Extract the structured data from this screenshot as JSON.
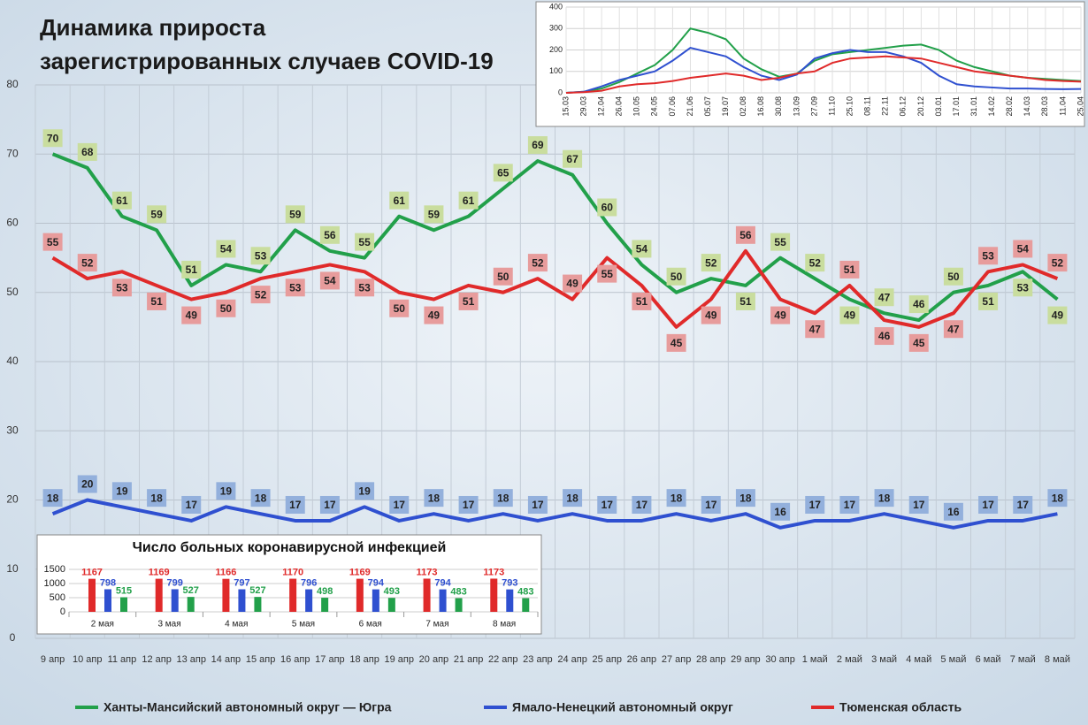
{
  "chart_data": [
    {
      "type": "line",
      "title": [
        "Динамика прироста",
        "зарегистрированных случаев COVID-19"
      ],
      "categories": [
        "9 апр",
        "10 апр",
        "11 апр",
        "12 апр",
        "13 апр",
        "14 апр",
        "15 апр",
        "16 апр",
        "17 апр",
        "18 апр",
        "19 апр",
        "20 апр",
        "21 апр",
        "22 апр",
        "23 апр",
        "24 апр",
        "25 апр",
        "26 апр",
        "27 апр",
        "28 апр",
        "29 апр",
        "30 апр",
        "1 май",
        "2 май",
        "3 май",
        "4 май",
        "5 май",
        "6 май",
        "7 май",
        "8 май"
      ],
      "series": [
        {
          "name": "Ханты-Мансийский автономный округ — Югра",
          "color": "#22a04a",
          "label_bg": "#c9dd9e",
          "values": [
            70,
            68,
            61,
            59,
            51,
            54,
            53,
            59,
            56,
            55,
            61,
            59,
            61,
            65,
            69,
            67,
            60,
            54,
            50,
            52,
            51,
            55,
            52,
            49,
            47,
            46,
            50,
            51,
            53,
            49
          ]
        },
        {
          "name": "Ямало-Ненецкий автономный округ",
          "color": "#2f50d0",
          "label_bg": "#93b0dc",
          "values": [
            18,
            20,
            19,
            18,
            17,
            19,
            18,
            17,
            17,
            19,
            17,
            18,
            17,
            18,
            17,
            18,
            17,
            17,
            18,
            17,
            18,
            16,
            17,
            17,
            18,
            17,
            16,
            17,
            17,
            18
          ]
        },
        {
          "name": "Тюменская область",
          "color": "#e02a2a",
          "label_bg": "#e79c9c",
          "values": [
            55,
            52,
            53,
            51,
            49,
            50,
            52,
            53,
            54,
            53,
            50,
            49,
            51,
            50,
            52,
            49,
            55,
            51,
            45,
            49,
            56,
            49,
            47,
            51,
            46,
            45,
            47,
            53,
            54,
            52
          ]
        }
      ],
      "ylim": [
        0,
        80
      ],
      "yticks": [
        0,
        10,
        20,
        30,
        40,
        50,
        60,
        70,
        80
      ],
      "grid": true
    },
    {
      "type": "bar",
      "title": "Число больных  коронавирусной  инфекцией",
      "categories": [
        "2 мая",
        "3 мая",
        "4 мая",
        "5 мая",
        "6 мая",
        "7 мая",
        "8 мая"
      ],
      "series": [
        {
          "color": "#e02a2a",
          "values": [
            1167,
            1169,
            1166,
            1170,
            1169,
            1173,
            1173
          ]
        },
        {
          "color": "#2f50d0",
          "values": [
            798,
            799,
            797,
            796,
            794,
            794,
            793
          ]
        },
        {
          "color": "#22a04a",
          "values": [
            515,
            527,
            527,
            498,
            493,
            483,
            483
          ]
        }
      ],
      "ylim": [
        0,
        1500
      ],
      "yticks": [
        0,
        500,
        1000,
        1500
      ]
    },
    {
      "type": "line",
      "categories": [
        "15.03",
        "29.03",
        "12.04",
        "26.04",
        "10.05",
        "24.05",
        "07.06",
        "21.06",
        "05.07",
        "19.07",
        "02.08",
        "16.08",
        "30.08",
        "13.09",
        "27.09",
        "11.10",
        "25.10",
        "08.11",
        "22.11",
        "06.12",
        "20.12",
        "03.01",
        "17.01",
        "31.01",
        "14.02",
        "28.02",
        "14.03",
        "28.03",
        "11.04",
        "25.04"
      ],
      "series": [
        {
          "color": "#22a04a",
          "values": [
            0,
            5,
            20,
            50,
            90,
            130,
            200,
            300,
            280,
            250,
            160,
            110,
            75,
            90,
            150,
            180,
            190,
            200,
            210,
            220,
            225,
            200,
            150,
            120,
            100,
            80,
            70,
            65,
            60,
            55
          ]
        },
        {
          "color": "#2f50d0",
          "values": [
            0,
            5,
            30,
            60,
            80,
            100,
            150,
            210,
            190,
            170,
            120,
            80,
            60,
            85,
            160,
            185,
            200,
            190,
            190,
            170,
            140,
            80,
            40,
            30,
            25,
            20,
            20,
            18,
            17,
            18
          ]
        },
        {
          "color": "#e02a2a",
          "values": [
            0,
            3,
            10,
            30,
            40,
            45,
            55,
            70,
            80,
            90,
            80,
            60,
            70,
            90,
            100,
            140,
            160,
            165,
            170,
            165,
            160,
            140,
            120,
            100,
            90,
            80,
            70,
            60,
            55,
            52
          ]
        }
      ],
      "ylim": [
        0,
        400
      ],
      "yticks": [
        0,
        100,
        200,
        300,
        400
      ],
      "grid": true
    }
  ]
}
